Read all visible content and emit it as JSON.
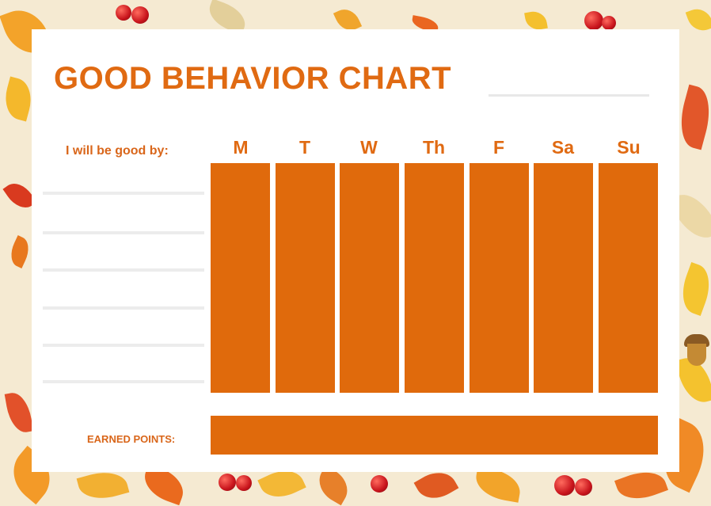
{
  "chart": {
    "title": "GOOD BEHAVIOR CHART",
    "behaviors_label": "I will be good by:",
    "earned_points_label": "EARNED POINTS:",
    "days": [
      "M",
      "T",
      "W",
      "Th",
      "F",
      "Sa",
      "Su"
    ]
  },
  "colors": {
    "accent": "#e06a0c",
    "title": "#e06a12",
    "background": "#f5ead2",
    "card": "#ffffff"
  }
}
